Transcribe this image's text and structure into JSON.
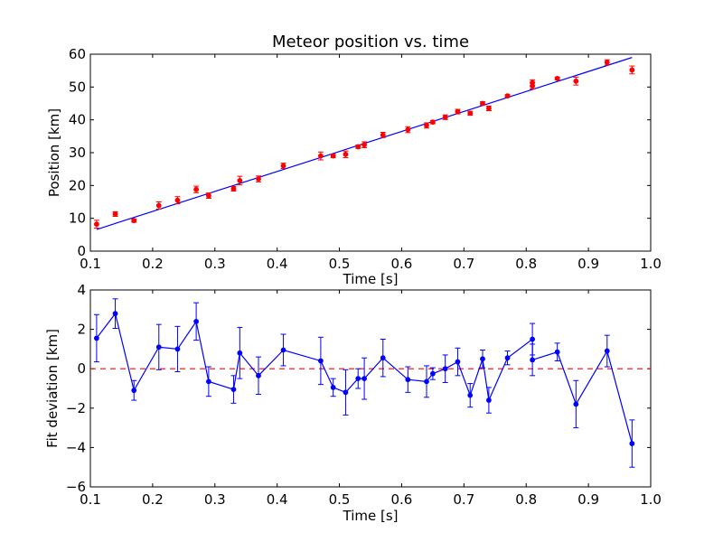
{
  "chart_data": [
    {
      "type": "scatter",
      "title": "Meteor position vs. time",
      "xlabel": "Time [s]",
      "ylabel": "Position [km]",
      "xlim": [
        0.1,
        1.0
      ],
      "ylim": [
        0,
        60
      ],
      "xticks": [
        0.1,
        0.2,
        0.3,
        0.4,
        0.5,
        0.6,
        0.7,
        0.8,
        0.9,
        1.0
      ],
      "yticks": [
        0,
        10,
        20,
        30,
        40,
        50,
        60
      ],
      "xtick_labels": [
        "0.1",
        "0.2",
        "0.3",
        "0.4",
        "0.5",
        "0.6",
        "0.7",
        "0.8",
        "0.9",
        "1.0"
      ],
      "ytick_labels": [
        "0",
        "10",
        "20",
        "30",
        "40",
        "50",
        "60"
      ],
      "grid": false,
      "colors": {
        "points": "#ff0000",
        "fit": "#0000ff"
      },
      "fit_line": {
        "x": [
          0.11,
          0.97
        ],
        "y": [
          6.6,
          59.0
        ]
      },
      "series": [
        {
          "x": [
            0.11,
            0.14,
            0.17,
            0.21,
            0.24,
            0.27,
            0.29,
            0.33,
            0.34,
            0.37,
            0.41,
            0.47,
            0.49,
            0.51,
            0.53,
            0.54,
            0.57,
            0.61,
            0.64,
            0.65,
            0.67,
            0.69,
            0.71,
            0.73,
            0.74,
            0.77,
            0.81,
            0.81,
            0.85,
            0.88,
            0.93,
            0.97
          ],
          "y": [
            8.2,
            11.3,
            9.3,
            13.9,
            15.5,
            18.8,
            16.9,
            19.0,
            21.5,
            22.0,
            26.0,
            29.0,
            29.0,
            29.5,
            31.8,
            32.4,
            35.4,
            37.0,
            38.3,
            39.3,
            40.8,
            42.5,
            42.0,
            45.0,
            43.5,
            47.3,
            50.3,
            51.3,
            52.6,
            51.8,
            57.5,
            55.2
          ],
          "err": [
            1.2,
            0.7,
            0.5,
            1.1,
            1.1,
            1.0,
            0.8,
            0.7,
            1.3,
            0.9,
            0.8,
            1.2,
            0.5,
            1.0,
            0.5,
            0.9,
            0.8,
            0.9,
            0.8,
            0.5,
            0.7,
            0.7,
            0.6,
            0.5,
            0.7,
            0.4,
            0.9,
            0.9,
            0.4,
            1.2,
            0.8,
            1.2
          ]
        }
      ]
    },
    {
      "type": "line",
      "title": "",
      "xlabel": "Time [s]",
      "ylabel": "Fit deviation [km]",
      "xlim": [
        0.1,
        1.0
      ],
      "ylim": [
        -6,
        4
      ],
      "xticks": [
        0.1,
        0.2,
        0.3,
        0.4,
        0.5,
        0.6,
        0.7,
        0.8,
        0.9,
        1.0
      ],
      "yticks": [
        -6,
        -4,
        -2,
        0,
        2,
        4
      ],
      "xtick_labels": [
        "0.1",
        "0.2",
        "0.3",
        "0.4",
        "0.5",
        "0.6",
        "0.7",
        "0.8",
        "0.9",
        "1.0"
      ],
      "ytick_labels": [
        "−6",
        "−4",
        "−2",
        "0",
        "2",
        "4"
      ],
      "grid": false,
      "colors": {
        "series": "#0000ff",
        "zero_line": "#ff0000"
      },
      "zero_line": 0,
      "series": [
        {
          "x": [
            0.11,
            0.14,
            0.17,
            0.21,
            0.24,
            0.27,
            0.29,
            0.33,
            0.34,
            0.37,
            0.41,
            0.47,
            0.49,
            0.51,
            0.53,
            0.54,
            0.57,
            0.61,
            0.64,
            0.65,
            0.67,
            0.69,
            0.71,
            0.73,
            0.74,
            0.77,
            0.81,
            0.81,
            0.85,
            0.88,
            0.93,
            0.97
          ],
          "y": [
            1.55,
            2.8,
            -1.1,
            1.1,
            1.0,
            2.4,
            -0.65,
            -1.05,
            0.8,
            -0.35,
            0.95,
            0.4,
            -0.95,
            -1.2,
            -0.5,
            -0.5,
            0.55,
            -0.55,
            -0.65,
            -0.25,
            0.0,
            0.35,
            -1.35,
            0.5,
            -1.6,
            0.55,
            1.5,
            0.45,
            0.85,
            -1.8,
            0.9,
            -3.8
          ],
          "err": [
            1.2,
            0.75,
            0.5,
            1.15,
            1.15,
            0.95,
            0.75,
            0.7,
            1.3,
            0.95,
            0.8,
            1.2,
            0.45,
            1.15,
            0.5,
            1.05,
            0.95,
            0.65,
            0.8,
            0.3,
            0.7,
            0.7,
            0.6,
            0.45,
            0.65,
            0.35,
            0.8,
            0.8,
            0.45,
            1.2,
            0.8,
            1.2
          ]
        }
      ]
    }
  ]
}
